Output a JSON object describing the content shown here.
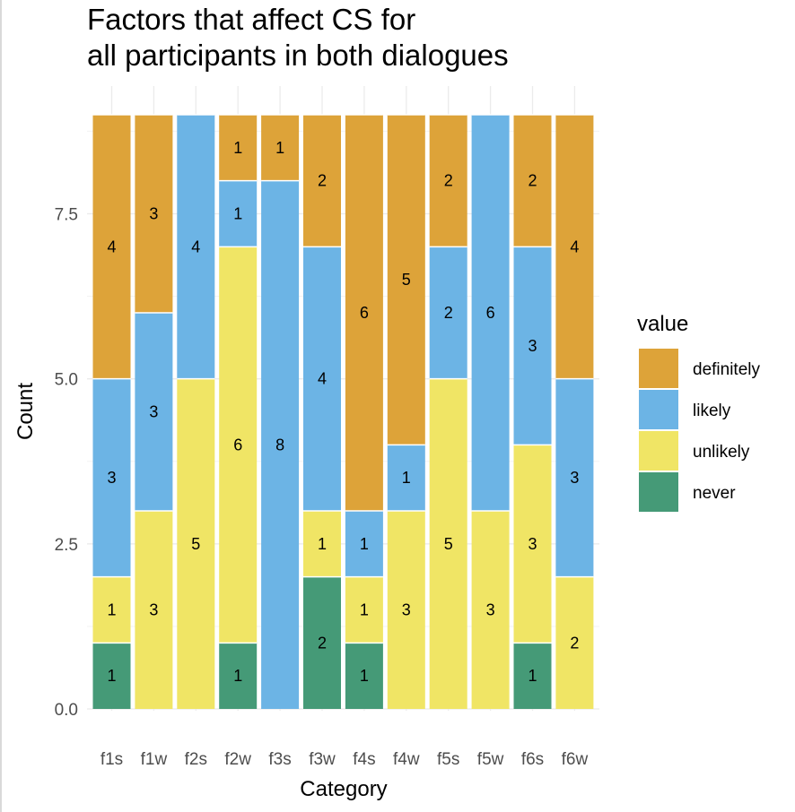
{
  "chart_data": {
    "type": "bar",
    "stacked": true,
    "title_lines": [
      "Factors that affect CS for",
      "all participants in both dialogues"
    ],
    "xlabel": "Category",
    "ylabel": "Count",
    "ylim": [
      0,
      9
    ],
    "y_ticks": [
      "0.0",
      "2.5",
      "5.0",
      "7.5"
    ],
    "y_tick_values": [
      0,
      2.5,
      5,
      7.5
    ],
    "grid": true,
    "legend_position": "right",
    "legend_title": "value",
    "categories": [
      "f1s",
      "f1w",
      "f2s",
      "f2w",
      "f3s",
      "f3w",
      "f4s",
      "f4w",
      "f5s",
      "f5w",
      "f6s",
      "f6w"
    ],
    "series": [
      {
        "name": "never",
        "color": "#459a77",
        "values": [
          1,
          0,
          0,
          1,
          0,
          2,
          1,
          0,
          0,
          0,
          1,
          0
        ]
      },
      {
        "name": "unlikely",
        "color": "#f0e565",
        "values": [
          1,
          3,
          5,
          6,
          0,
          1,
          1,
          3,
          5,
          3,
          3,
          2
        ]
      },
      {
        "name": "likely",
        "color": "#6cb4e5",
        "values": [
          3,
          3,
          4,
          1,
          8,
          4,
          1,
          1,
          2,
          6,
          3,
          3
        ]
      },
      {
        "name": "definitely",
        "color": "#dda339",
        "values": [
          4,
          3,
          0,
          1,
          1,
          2,
          6,
          5,
          2,
          0,
          2,
          4
        ]
      }
    ],
    "legend_order": [
      "definitely",
      "likely",
      "unlikely",
      "never"
    ]
  }
}
